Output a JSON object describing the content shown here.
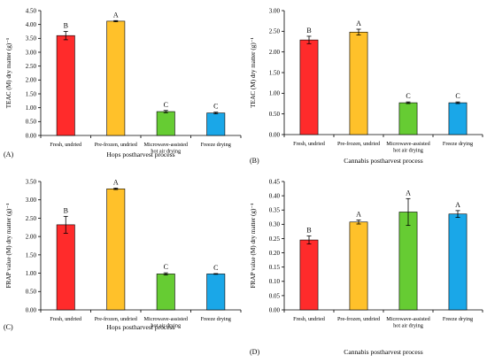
{
  "chart_data": [
    {
      "type": "bar",
      "panel_label": "(A)",
      "categories": [
        [
          "Fresh, undried"
        ],
        [
          "Pre-frozen, undried"
        ],
        [
          "Microwave-assisted",
          "hot air drying"
        ],
        [
          "Freeze drying"
        ]
      ],
      "values": [
        3.6,
        4.12,
        0.86,
        0.81
      ],
      "errors": [
        0.15,
        0.02,
        0.04,
        0.03
      ],
      "significance": [
        "B",
        "A",
        "C",
        "C"
      ],
      "colors": [
        "#ff2b2b",
        "#ffc12a",
        "#66cc33",
        "#1aa7e8"
      ],
      "title": "",
      "xlabel": "Hops postharvest process",
      "ylabel": "TEAC (M) dry matter (g)⁻¹",
      "ylim": [
        0,
        4.5
      ],
      "yticks": [
        "0.00",
        "0.50",
        "1.00",
        "1.50",
        "2.00",
        "2.50",
        "3.00",
        "3.50",
        "4.00",
        "4.50"
      ],
      "ytick_values": [
        0,
        0.5,
        1,
        1.5,
        2,
        2.5,
        3,
        3.5,
        4,
        4.5
      ],
      "grid": false
    },
    {
      "type": "bar",
      "panel_label": "(B)",
      "categories": [
        [
          "Fresh, undried"
        ],
        [
          "Pre-frozen, undried"
        ],
        [
          "Microwave-assisted",
          "hot air drying"
        ],
        [
          "Freeze drying"
        ]
      ],
      "values": [
        2.29,
        2.48,
        0.77,
        0.77
      ],
      "errors": [
        0.09,
        0.07,
        0.02,
        0.02
      ],
      "significance": [
        "B",
        "A",
        "C",
        "C"
      ],
      "colors": [
        "#ff2b2b",
        "#ffc12a",
        "#66cc33",
        "#1aa7e8"
      ],
      "title": "",
      "xlabel": "Cannabis postharvest process",
      "ylabel": "TEAC (M) dry matter (g)⁻¹",
      "ylim": [
        0,
        3.0
      ],
      "yticks": [
        "0.00",
        "0.50",
        "1.00",
        "1.50",
        "2.00",
        "2.50",
        "3.00"
      ],
      "ytick_values": [
        0,
        0.5,
        1,
        1.5,
        2,
        2.5,
        3
      ],
      "grid": false
    },
    {
      "type": "bar",
      "panel_label": "(C)",
      "categories": [
        [
          "Fresh, undried"
        ],
        [
          "Pre-frozen, undried"
        ],
        [
          "Microwave-assisted",
          "hot air drying"
        ],
        [
          "Freeze drying"
        ]
      ],
      "values": [
        2.32,
        3.3,
        0.98,
        0.98
      ],
      "errors": [
        0.23,
        0.02,
        0.03,
        0.01
      ],
      "significance": [
        "B",
        "A",
        "C",
        "C"
      ],
      "colors": [
        "#ff2b2b",
        "#ffc12a",
        "#66cc33",
        "#1aa7e8"
      ],
      "title": "",
      "xlabel": "Hops postharvest process",
      "ylabel": "FRAP value (M) dry matter (g)⁻¹",
      "ylim": [
        0,
        3.5
      ],
      "yticks": [
        "0.00",
        "0.50",
        "1.00",
        "1.50",
        "2.00",
        "2.50",
        "3.00",
        "3.50"
      ],
      "ytick_values": [
        0,
        0.5,
        1,
        1.5,
        2,
        2.5,
        3,
        3.5
      ],
      "grid": false
    },
    {
      "type": "bar",
      "panel_label": "(D)",
      "categories": [
        [
          "Fresh, undried"
        ],
        [
          "Pre-frozen, undried"
        ],
        [
          "Microwave-assisted",
          "hot air drying"
        ],
        [
          "Freeze drying"
        ]
      ],
      "values": [
        0.245,
        0.308,
        0.343,
        0.336
      ],
      "errors": [
        0.014,
        0.007,
        0.047,
        0.012
      ],
      "significance": [
        "B",
        "A",
        "A",
        "A"
      ],
      "colors": [
        "#ff2b2b",
        "#ffc12a",
        "#66cc33",
        "#1aa7e8"
      ],
      "title": "",
      "xlabel": "Cannabis postharvest process",
      "ylabel": "FRAP value (M) dry matter (g)⁻¹",
      "ylim": [
        0,
        0.45
      ],
      "yticks": [
        "0.00",
        "0.05",
        "0.10",
        "0.15",
        "0.20",
        "0.25",
        "0.30",
        "0.35",
        "0.40",
        "0.45"
      ],
      "ytick_values": [
        0,
        0.05,
        0.1,
        0.15,
        0.2,
        0.25,
        0.3,
        0.35,
        0.4,
        0.45
      ],
      "grid": false
    }
  ]
}
